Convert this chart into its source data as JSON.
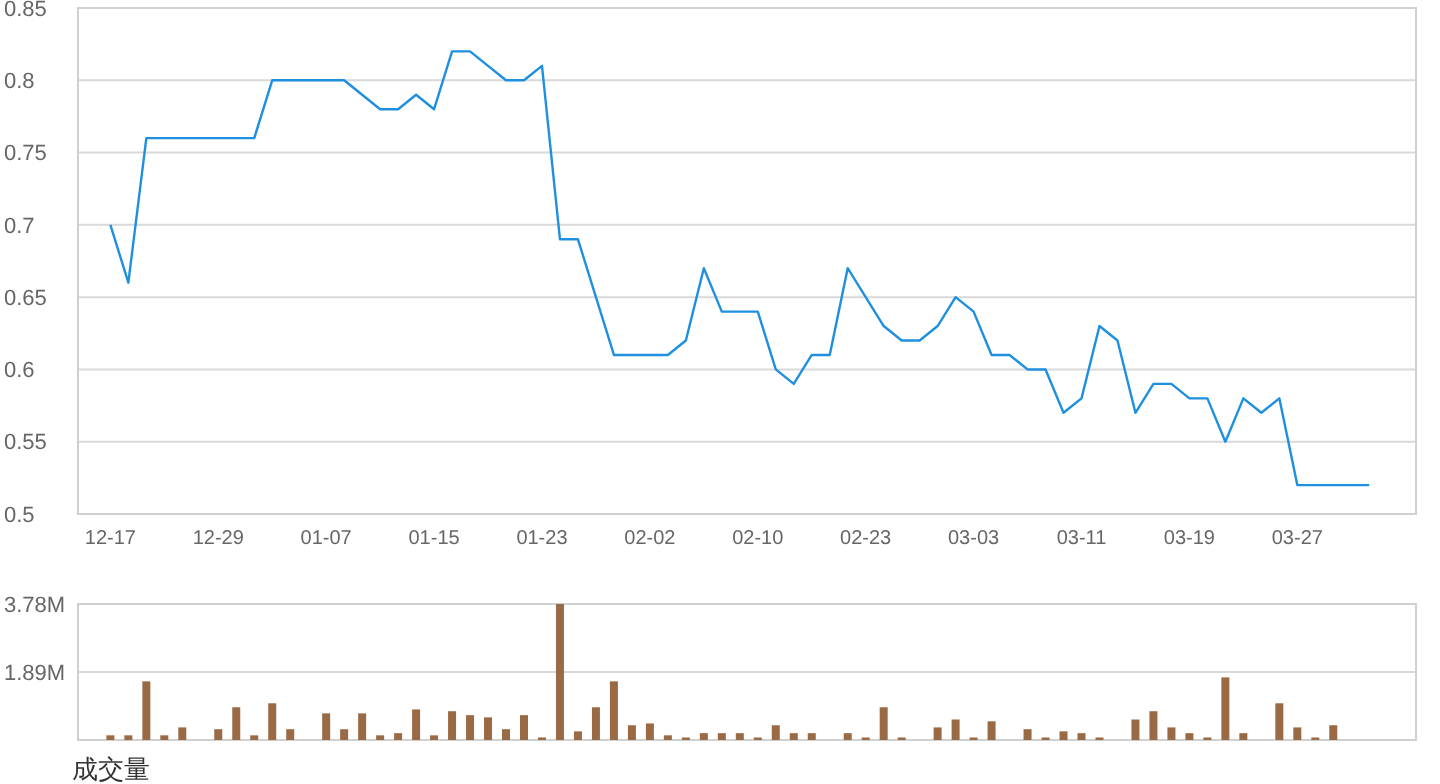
{
  "chart_data": [
    {
      "type": "line",
      "categories": [
        "12-17",
        null,
        null,
        null,
        null,
        null,
        "12-29",
        null,
        null,
        null,
        null,
        null,
        "01-07",
        null,
        null,
        null,
        null,
        null,
        "01-15",
        null,
        null,
        null,
        null,
        null,
        "01-23",
        null,
        null,
        null,
        null,
        null,
        "02-02",
        null,
        null,
        null,
        null,
        null,
        "02-10",
        null,
        null,
        null,
        null,
        null,
        "02-23",
        null,
        null,
        null,
        null,
        null,
        "03-03",
        null,
        null,
        null,
        null,
        null,
        "03-11",
        null,
        null,
        null,
        null,
        null,
        "03-19",
        null,
        null,
        null,
        null,
        null,
        "03-27",
        null,
        null,
        null,
        null
      ],
      "series": [
        {
          "color": "#1f8fe0",
          "values": [
            0.7,
            0.66,
            0.76,
            0.76,
            0.76,
            0.76,
            0.76,
            0.76,
            0.76,
            0.8,
            0.8,
            0.8,
            0.8,
            0.8,
            0.79,
            0.78,
            0.78,
            0.79,
            0.78,
            0.82,
            0.82,
            0.81,
            0.8,
            0.8,
            0.81,
            0.69,
            0.69,
            0.65,
            0.61,
            0.61,
            0.61,
            0.61,
            0.62,
            0.67,
            0.64,
            0.64,
            0.64,
            0.6,
            0.59,
            0.61,
            0.61,
            0.67,
            0.65,
            0.63,
            0.62,
            0.62,
            0.63,
            0.65,
            0.64,
            0.61,
            0.61,
            0.6,
            0.6,
            0.57,
            0.58,
            0.63,
            0.62,
            0.57,
            0.59,
            0.59,
            0.58,
            0.58,
            0.55,
            0.58,
            0.57,
            0.58,
            0.52,
            0.52,
            0.52,
            0.52,
            0.52
          ]
        }
      ],
      "ylim": [
        0.5,
        0.85
      ],
      "yticks": [
        0.5,
        0.55,
        0.6,
        0.65,
        0.7,
        0.75,
        0.8,
        0.85
      ],
      "grid": "y"
    },
    {
      "type": "bar",
      "xlabel": "成交量",
      "categories": [
        null,
        null,
        null,
        null,
        null,
        null,
        null,
        null,
        null,
        null,
        null,
        null,
        null,
        null,
        null,
        null,
        null,
        null,
        null,
        null,
        null,
        null,
        null,
        null,
        null,
        null,
        null,
        null,
        null,
        null,
        null,
        null,
        null,
        null,
        null,
        null,
        null,
        null,
        null,
        null,
        null,
        null,
        null,
        null,
        null,
        null,
        null,
        null,
        null,
        null,
        null,
        null,
        null,
        null,
        null,
        null,
        null,
        null,
        null,
        null,
        null,
        null,
        null,
        null,
        null,
        null,
        null,
        null,
        null,
        null,
        null
      ],
      "series": [
        {
          "color": "#9a6a44",
          "values": [
            0.13,
            0.13,
            1.63,
            0.13,
            0.35,
            0,
            0.3,
            0.91,
            0.13,
            1.02,
            0.3,
            0,
            0.74,
            0.3,
            0.74,
            0.13,
            0.19,
            0.85,
            0.13,
            0.8,
            0.69,
            0.63,
            0.3,
            0.69,
            0.07,
            3.78,
            0.24,
            0.91,
            1.63,
            0.41,
            0.46,
            0.13,
            0.07,
            0.19,
            0.19,
            0.19,
            0.07,
            0.41,
            0.19,
            0.19,
            0,
            0.19,
            0.07,
            0.91,
            0.07,
            0,
            0.35,
            0.57,
            0.07,
            0.52,
            0,
            0.3,
            0.07,
            0.24,
            0.19,
            0.07,
            0,
            0.57,
            0.8,
            0.35,
            0.19,
            0.07,
            1.74,
            0.19,
            0,
            1.02,
            0.35,
            0.07,
            0.41,
            0,
            0
          ]
        }
      ],
      "ylim": [
        0,
        3.78
      ],
      "yticks": [
        {
          "value": 1.89,
          "label": "1.89M"
        },
        {
          "value": 3.78,
          "label": "3.78M"
        }
      ],
      "grid": "y",
      "tick_labels": "y"
    }
  ]
}
